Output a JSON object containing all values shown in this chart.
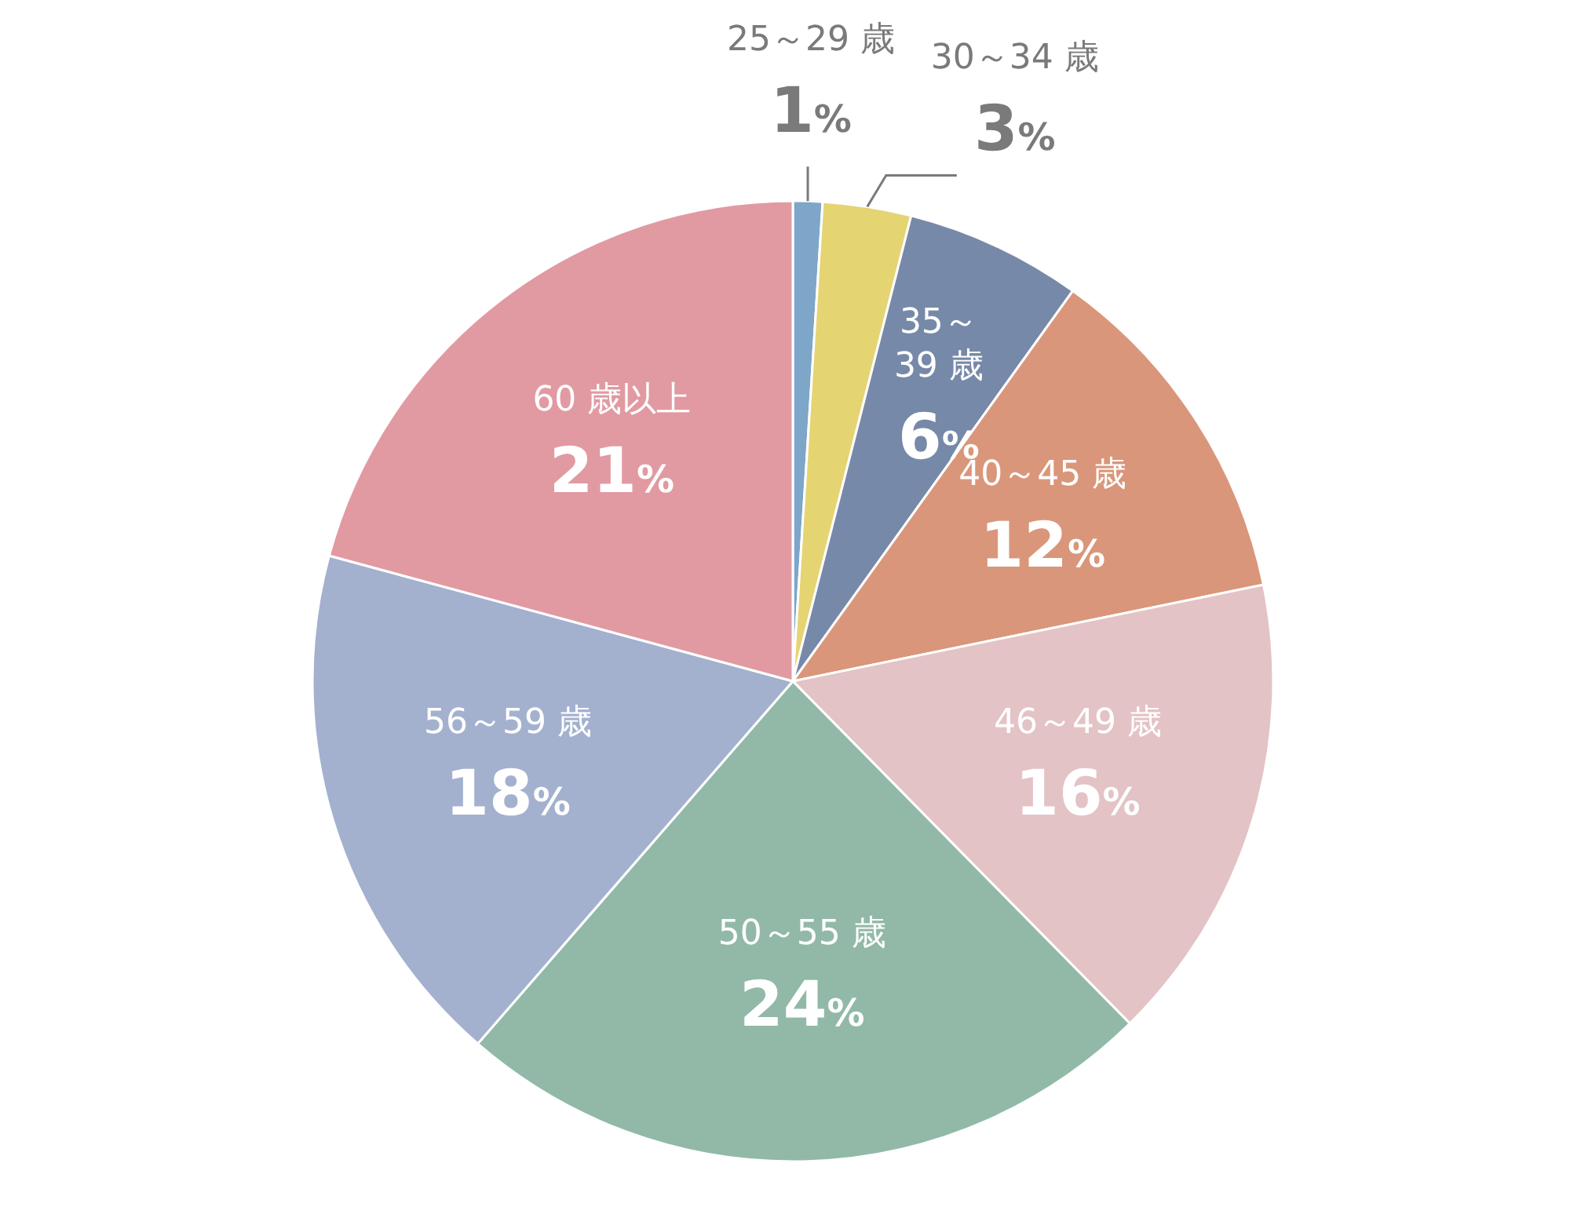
{
  "chart_data": {
    "type": "pie",
    "categories": [
      "25～29 歳",
      "30～34 歳",
      "35～39 歳",
      "40～45 歳",
      "46～49 歳",
      "50～55 歳",
      "56～59 歳",
      "60 歳以上"
    ],
    "values": [
      1,
      3,
      6,
      12,
      16,
      24,
      18,
      21
    ],
    "value_labels": [
      "1%",
      "3%",
      "6%",
      "12%",
      "16%",
      "24%",
      "18%",
      "21%"
    ],
    "colors": [
      "#7ea6c8",
      "#e5d472",
      "#7789a8",
      "#da967a",
      "#e3c3c5",
      "#92b9a8",
      "#a3b1cf",
      "#e19aa2"
    ]
  }
}
